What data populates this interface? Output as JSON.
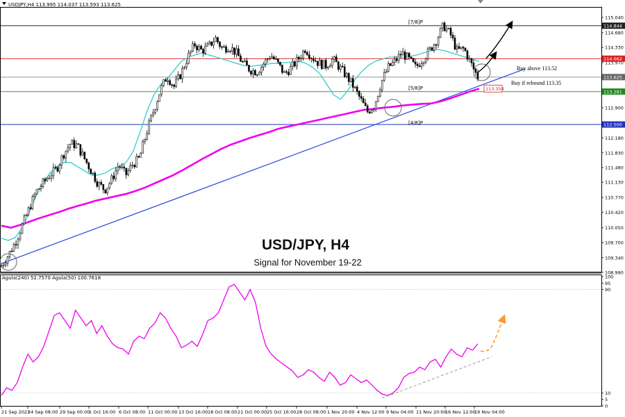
{
  "header": {
    "symbol_info": "USDJPY,H4  113.995 114.037 113.593 113.625",
    "indicator_info": "Agula(240) 52.7570  Agula(50) 100.7618"
  },
  "titles": {
    "main": "USD/JPY, H4",
    "sub": "Signal for November 19-22"
  },
  "annotations": {
    "buy_above": "Buy above 113.52",
    "buy_rebound": "Buy if rebound 113.35",
    "murrey_78": "[7/8]P",
    "murrey_58": "[5/8]P",
    "murrey_48": "[4/8]P"
  },
  "colors": {
    "candle": "#000000",
    "sma_fast": "#33cccc",
    "sma_slow": "#ee00ee",
    "trendline": "#3355dd",
    "line_78": "#000000",
    "line_red": "#dd2222",
    "line_current": "#888888",
    "line_58": "#228822",
    "line_48": "#2233bb",
    "osc": "#ee00ee",
    "osc_arrow": "#ff9933",
    "osc_trend": "#999999"
  },
  "chart_data": [
    {
      "type": "candlestick",
      "title": "USD/JPY, H4",
      "subtitle": "Signal for November 19-22",
      "ylim": [
        108.99,
        115.19
      ],
      "y_ticks": [
        "115.040",
        "114.680",
        "114.330",
        "113.970",
        "113.625",
        "113.281",
        "112.900",
        "112.500",
        "112.180",
        "111.830",
        "111.480",
        "111.130",
        "110.770",
        "110.420",
        "110.050",
        "109.700",
        "109.340",
        "108.990"
      ],
      "price_labels": [
        {
          "value": 114.844,
          "text": "114.844",
          "style": "dark"
        },
        {
          "value": 114.062,
          "text": "114.062",
          "style": "red"
        },
        {
          "value": 113.625,
          "text": "113.625",
          "style": "gray"
        },
        {
          "value": 113.281,
          "text": "113.281",
          "style": "green"
        },
        {
          "value": 112.5,
          "text": "112.500",
          "style": "blue"
        }
      ],
      "x_labels": [
        "21 Sep 2021",
        "24 Sep 08:00",
        "29 Sep 00:00",
        "1 Oct 16:00",
        "6 Oct 08:00",
        "11 Oct 00:00",
        "13 Oct 16:00",
        "18 Oct 08:00",
        "21 Oct 00:00",
        "25 Oct 16:00",
        "28 Oct 08:00",
        "1 Nov 20:00",
        "4 Nov 12:00",
        "9 Nov 04:00",
        "11 Nov 20:00",
        "16 Nov 12:00",
        "19 Nov 04:00"
      ],
      "horizontal_levels": [
        {
          "name": "murrey-7-8",
          "value": 114.844,
          "label": "[7/8]P"
        },
        {
          "name": "resistance-red",
          "value": 114.062
        },
        {
          "name": "current-price",
          "value": 113.625
        },
        {
          "name": "murrey-5-8",
          "value": 113.281,
          "label": "[5/8]P"
        },
        {
          "name": "murrey-4-8",
          "value": 112.5,
          "label": "[4/8]P"
        }
      ],
      "sma_200_label": "113.354",
      "close_path": [
        109.15,
        109.4,
        109.7,
        110.1,
        110.5,
        110.9,
        111.1,
        111.3,
        111.45,
        111.8,
        112.05,
        112.0,
        111.7,
        111.4,
        111.1,
        110.95,
        111.2,
        111.55,
        111.3,
        111.55,
        111.7,
        112.3,
        112.8,
        113.3,
        113.65,
        113.4,
        113.7,
        114.1,
        114.4,
        114.25,
        114.35,
        114.55,
        114.3,
        114.35,
        114.2,
        113.95,
        113.8,
        113.75,
        113.95,
        114.15,
        113.95,
        113.7,
        113.85,
        114.05,
        114.3,
        114.1,
        113.95,
        113.9,
        114.05,
        113.85,
        113.65,
        113.4,
        113.1,
        112.8,
        112.95,
        113.5,
        113.85,
        114.0,
        114.2,
        114.05,
        113.85,
        114.05,
        114.25,
        114.5,
        114.85,
        114.65,
        114.25,
        114.3,
        113.95,
        113.62
      ],
      "sma_fast_path": [
        109.8,
        109.75,
        109.82,
        110.05,
        110.4,
        110.8,
        111.1,
        111.35,
        111.5,
        111.6,
        111.6,
        111.5,
        111.4,
        111.3,
        111.3,
        111.35,
        111.45,
        111.5,
        111.6,
        111.85,
        112.3,
        112.8,
        113.2,
        113.45,
        113.6,
        113.8,
        114.0,
        114.1,
        114.15,
        114.2,
        114.15,
        114.1,
        114.05,
        114.0,
        113.95,
        113.9,
        113.88,
        113.9,
        113.92,
        113.95,
        113.95,
        113.97,
        113.98,
        114.0,
        113.95,
        113.85,
        113.7,
        113.45,
        113.2,
        113.1,
        113.3,
        113.55,
        113.75,
        113.9,
        114.0,
        114.05,
        114.1,
        114.1,
        114.1,
        114.12,
        114.15,
        114.2,
        114.25,
        114.28,
        114.25,
        114.2,
        114.15,
        114.1,
        114.05,
        114.0
      ],
      "sma_slow_path": [
        110.1,
        110.05,
        110.12,
        110.2,
        110.28,
        110.35,
        110.42,
        110.5,
        110.57,
        110.63,
        110.7,
        110.75,
        110.8,
        110.85,
        110.92,
        111.0,
        111.1,
        111.2,
        111.3,
        111.42,
        111.55,
        111.68,
        111.8,
        111.92,
        112.02,
        112.1,
        112.18,
        112.25,
        112.32,
        112.4,
        112.45,
        112.5,
        112.55,
        112.6,
        112.65,
        112.7,
        112.75,
        112.8,
        112.85,
        112.87,
        112.9,
        112.92,
        112.95,
        112.97,
        112.99,
        113.0,
        113.05,
        113.12,
        113.2,
        113.28,
        113.35
      ],
      "trendline": {
        "from_price": 109.2,
        "to_price": 113.82
      }
    },
    {
      "type": "line",
      "title": "Agula(240) 52.7570  Agula(50) 100.7618",
      "ylim": [
        0,
        100
      ],
      "y_ticks": [
        "100",
        "95",
        "90",
        "10",
        "5",
        "0"
      ],
      "values": [
        8,
        14,
        12,
        18,
        30,
        40,
        34,
        38,
        46,
        58,
        70,
        72,
        66,
        60,
        74,
        68,
        62,
        66,
        56,
        62,
        54,
        48,
        45,
        44,
        40,
        50,
        54,
        52,
        60,
        64,
        72,
        68,
        60,
        54,
        45,
        47,
        50,
        46,
        55,
        66,
        68,
        72,
        82,
        92,
        94,
        88,
        82,
        90,
        80,
        60,
        46,
        40,
        36,
        33,
        30,
        27,
        22,
        24,
        28,
        26,
        22,
        19,
        26,
        22,
        16,
        18,
        24,
        21,
        18,
        20,
        16,
        12,
        9,
        8,
        10,
        14,
        22,
        25,
        26,
        30,
        28,
        34,
        36,
        30,
        38,
        44,
        40,
        38,
        45,
        43,
        48
      ],
      "osc_trend": {
        "from": 6,
        "to": 38
      }
    }
  ]
}
